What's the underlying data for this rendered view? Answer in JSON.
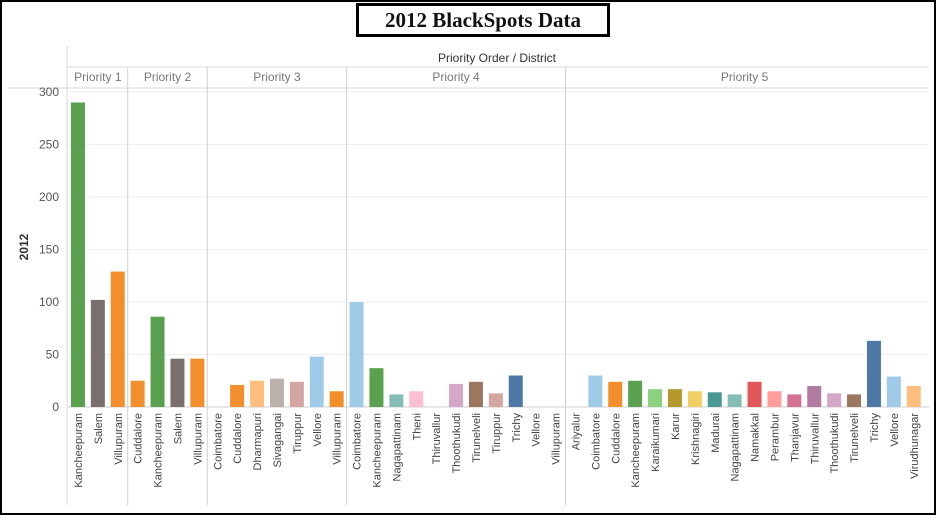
{
  "colors": {
    "Kancheepuram": "#59a14f",
    "Salem": "#79706e",
    "Villupuram": "#f28e2b",
    "Cuddalore": "#f28e2b",
    "Coimbatore": "#a0cbe8",
    "Dharmapuri": "#ffbe7d",
    "Sivagangai": "#bab0ac",
    "Tiruppur": "#d4a6a1",
    "Vellore": "#a0cbe8",
    "Nagapattinam": "#86bcb6",
    "Theni": "#fabfd2",
    "Thiruvallur": "#b07aa1",
    "Thoothukudi": "#d4a6c8",
    "Tirunelveli": "#9d7660",
    "Trichy": "#4e79a7",
    "Ariyalur": "#4e79a7",
    "Karaikumari": "#8cd17d",
    "Karur": "#b6992d",
    "Krishnagiri": "#f1ce63",
    "Madurai": "#499894",
    "Namakkal": "#e15759",
    "Perambur": "#ff9d9a",
    "Thanjavur": "#d37295",
    "Virudhunagar": "#ffbe7d"
  },
  "chart_data": {
    "type": "bar",
    "title": "2012 BlackSpots Data",
    "header_label": "Priority Order / District",
    "ylabel": "2012",
    "ylim": [
      0,
      310
    ],
    "yticks": [
      0,
      50,
      100,
      150,
      200,
      250,
      300
    ],
    "grid": true,
    "groups": [
      {
        "label": "Priority 1",
        "categories": [
          "Kancheepuram",
          "Salem",
          "Villupuram"
        ],
        "values": [
          290,
          102,
          129
        ]
      },
      {
        "label": "Priority 2",
        "categories": [
          "Cuddalore",
          "Kancheepuram",
          "Salem",
          "Villupuram"
        ],
        "values": [
          25,
          86,
          46,
          46
        ]
      },
      {
        "label": "Priority 3",
        "categories": [
          "Coimbatore",
          "Cuddalore",
          "Dharmapuri",
          "Sivagangai",
          "Tiruppur",
          "Vellore",
          "Villupuram"
        ],
        "values": [
          0,
          21,
          25,
          27,
          24,
          48,
          15
        ]
      },
      {
        "label": "Priority 4",
        "categories": [
          "Coimbatore",
          "Kancheepuram",
          "Nagapattinam",
          "Theni",
          "Thiruvallur",
          "Thoothukudi",
          "Tirunelveli",
          "Tiruppur",
          "Trichy",
          "Vellore",
          "Villupuram"
        ],
        "values": [
          100,
          37,
          12,
          15,
          0,
          22,
          24,
          13,
          30,
          0,
          0
        ]
      },
      {
        "label": "Priority 5",
        "categories": [
          "Ariyalur",
          "Coimbatore",
          "Cuddalore",
          "Kancheepuram",
          "Karaikumari",
          "Karur",
          "Krishnagiri",
          "Madurai",
          "Nagapattinam",
          "Namakkal",
          "Perambur",
          "Thanjavur",
          "Thiruvallur",
          "Thoothukudi",
          "Tirunelveli",
          "Trichy",
          "Vellore",
          "Virudhunagar"
        ],
        "values": [
          0,
          30,
          24,
          25,
          17,
          17,
          15,
          14,
          12,
          24,
          15,
          12,
          20,
          13,
          12,
          63,
          29,
          20
        ]
      }
    ]
  }
}
